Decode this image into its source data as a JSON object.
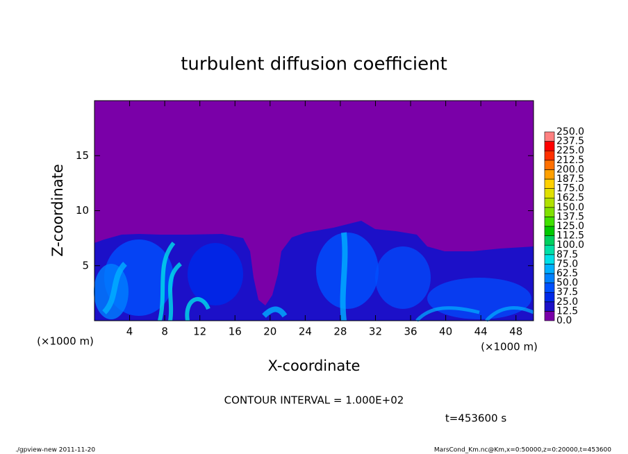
{
  "chart_data": {
    "type": "heatmap",
    "title": "turbulent diffusion coefficient",
    "x_label": "X-coordinate",
    "y_label": "Z-coordinate",
    "x_unit": "(×1000 m)",
    "y_unit": "(×1000 m)",
    "xlim": [
      0,
      50
    ],
    "xticks": [
      4,
      8,
      12,
      16,
      20,
      24,
      28,
      32,
      36,
      40,
      44,
      48
    ],
    "ylim": [
      0,
      20
    ],
    "yticks": [
      5,
      10,
      15
    ],
    "colorbar": {
      "ticks": [
        {
          "value": 0,
          "label": "0.0"
        },
        {
          "value": 12.5,
          "label": "12.5"
        },
        {
          "value": 25,
          "label": "25.0"
        },
        {
          "value": 37.5,
          "label": "37.5"
        },
        {
          "value": 50,
          "label": "50.0"
        },
        {
          "value": 62.5,
          "label": "62.5"
        },
        {
          "value": 75,
          "label": "75.0"
        },
        {
          "value": 87.5,
          "label": "87.5"
        },
        {
          "value": 100,
          "label": "100.0"
        },
        {
          "value": 112.5,
          "label": "112.5"
        },
        {
          "value": 125,
          "label": "125.0"
        },
        {
          "value": 137.5,
          "label": "137.5"
        },
        {
          "value": 150,
          "label": "150.0"
        },
        {
          "value": 162.5,
          "label": "162.5"
        },
        {
          "value": 175,
          "label": "175.0"
        },
        {
          "value": 187.5,
          "label": "187.5"
        },
        {
          "value": 200,
          "label": "200.0"
        },
        {
          "value": 212.5,
          "label": "212.5"
        },
        {
          "value": 225,
          "label": "225.0"
        },
        {
          "value": 237.5,
          "label": "237.5"
        },
        {
          "value": 250,
          "label": "250.0"
        }
      ],
      "colors": [
        "#7a00a8",
        "#1c10c8",
        "#0028e8",
        "#0050ff",
        "#0080ff",
        "#00b0ff",
        "#00e0e8",
        "#00e0a8",
        "#00d060",
        "#00c800",
        "#40e000",
        "#80e000",
        "#b0e000",
        "#e0e000",
        "#ffd000",
        "#ffa000",
        "#ff7000",
        "#ff3000",
        "#ff0000",
        "#ff8080"
      ]
    },
    "annotation": "CONTOUR INTERVAL = 1.000E+02",
    "time_label": "t=453600 s",
    "footer_left": "./gpview-new  2011-11-20",
    "footer_right": "MarsCond_Km.nc@Km,x=0:50000,z=0:20000,t=453600"
  }
}
